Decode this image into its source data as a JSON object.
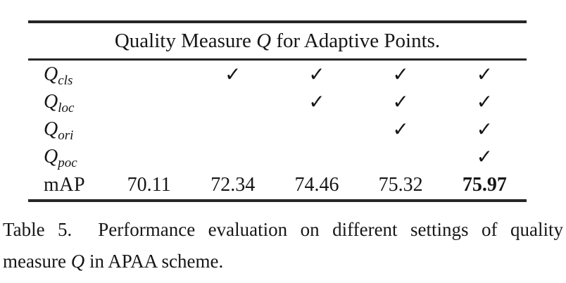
{
  "table": {
    "title": {
      "prefix": "Quality Measure ",
      "math_q": "Q",
      "suffix": " for Adaptive Points."
    },
    "check_glyph": "✓",
    "quality_rows": [
      {
        "symbol": "Q",
        "subscript": "cls",
        "checks": [
          false,
          true,
          true,
          true,
          true
        ]
      },
      {
        "symbol": "Q",
        "subscript": "loc",
        "checks": [
          false,
          false,
          true,
          true,
          true
        ]
      },
      {
        "symbol": "Q",
        "subscript": "ori",
        "checks": [
          false,
          false,
          false,
          true,
          true
        ]
      },
      {
        "symbol": "Q",
        "subscript": "poc",
        "checks": [
          false,
          false,
          false,
          false,
          true
        ]
      }
    ],
    "map_row": {
      "label": "mAP",
      "values": [
        "70.11",
        "72.34",
        "74.46",
        "75.32",
        "75.97"
      ],
      "bold_index": 4
    }
  },
  "caption": {
    "line1": "Table 5.  Performance evaluation on different settings of quality",
    "line2_prefix": "measure ",
    "line2_math": "Q",
    "line2_suffix": " in APAA scheme."
  },
  "colors": {
    "rule": "#262626",
    "text": "#161616",
    "background": "#ffffff"
  }
}
